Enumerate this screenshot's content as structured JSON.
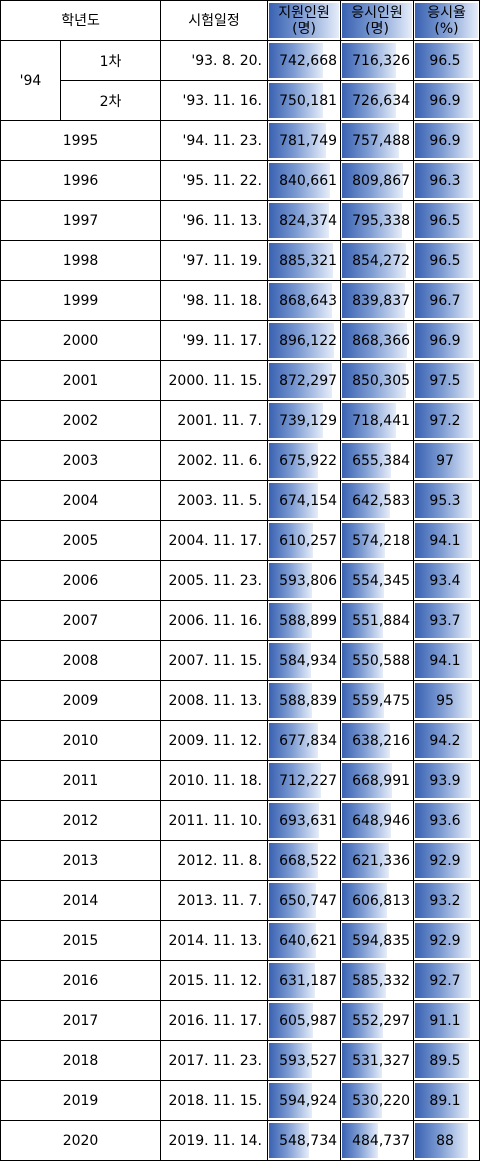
{
  "headers": {
    "year": "학년도",
    "date": "시험일정",
    "applicants": "지원인원",
    "applicants_unit": "(명)",
    "examinees": "응시인원",
    "examinees_unit": "(명)",
    "rate": "응시율",
    "rate_unit": "(%)"
  },
  "group94": {
    "label": "'94",
    "rows": [
      {
        "sub": "1차",
        "date": "'93. 8. 20.",
        "applicants": "742,668",
        "examinees": "716,326",
        "rate": "96.5"
      },
      {
        "sub": "2차",
        "date": "'93. 11. 16.",
        "applicants": "750,181",
        "examinees": "726,634",
        "rate": "96.9"
      }
    ]
  },
  "rows": [
    {
      "year": "1995",
      "date": "'94. 11. 23.",
      "applicants": "781,749",
      "examinees": "757,488",
      "rate": "96.9"
    },
    {
      "year": "1996",
      "date": "'95. 11. 22.",
      "applicants": "840,661",
      "examinees": "809,867",
      "rate": "96.3"
    },
    {
      "year": "1997",
      "date": "'96. 11. 13.",
      "applicants": "824,374",
      "examinees": "795,338",
      "rate": "96.5"
    },
    {
      "year": "1998",
      "date": "'97. 11. 19.",
      "applicants": "885,321",
      "examinees": "854,272",
      "rate": "96.5"
    },
    {
      "year": "1999",
      "date": "'98. 11. 18.",
      "applicants": "868,643",
      "examinees": "839,837",
      "rate": "96.7"
    },
    {
      "year": "2000",
      "date": "'99. 11. 17.",
      "applicants": "896,122",
      "examinees": "868,366",
      "rate": "96.9"
    },
    {
      "year": "2001",
      "date": "2000. 11. 15.",
      "applicants": "872,297",
      "examinees": "850,305",
      "rate": "97.5"
    },
    {
      "year": "2002",
      "date": "2001. 11. 7.",
      "applicants": "739,129",
      "examinees": "718,441",
      "rate": "97.2"
    },
    {
      "year": "2003",
      "date": "2002. 11. 6.",
      "applicants": "675,922",
      "examinees": "655,384",
      "rate": "97"
    },
    {
      "year": "2004",
      "date": "2003. 11. 5.",
      "applicants": "674,154",
      "examinees": "642,583",
      "rate": "95.3"
    },
    {
      "year": "2005",
      "date": "2004. 11. 17.",
      "applicants": "610,257",
      "examinees": "574,218",
      "rate": "94.1"
    },
    {
      "year": "2006",
      "date": "2005. 11. 23.",
      "applicants": "593,806",
      "examinees": "554,345",
      "rate": "93.4"
    },
    {
      "year": "2007",
      "date": "2006. 11. 16.",
      "applicants": "588,899",
      "examinees": "551,884",
      "rate": "93.7"
    },
    {
      "year": "2008",
      "date": "2007. 11. 15.",
      "applicants": "584,934",
      "examinees": "550,588",
      "rate": "94.1"
    },
    {
      "year": "2009",
      "date": "2008. 11. 13.",
      "applicants": "588,839",
      "examinees": "559,475",
      "rate": "95"
    },
    {
      "year": "2010",
      "date": "2009. 11. 12.",
      "applicants": "677,834",
      "examinees": "638,216",
      "rate": "94.2"
    },
    {
      "year": "2011",
      "date": "2010. 11. 18.",
      "applicants": "712,227",
      "examinees": "668,991",
      "rate": "93.9"
    },
    {
      "year": "2012",
      "date": "2011. 11. 10.",
      "applicants": "693,631",
      "examinees": "648,946",
      "rate": "93.6"
    },
    {
      "year": "2013",
      "date": "2012. 11. 8.",
      "applicants": "668,522",
      "examinees": "621,336",
      "rate": "92.9"
    },
    {
      "year": "2014",
      "date": "2013. 11. 7.",
      "applicants": "650,747",
      "examinees": "606,813",
      "rate": "93.2"
    },
    {
      "year": "2015",
      "date": "2014. 11. 13.",
      "applicants": "640,621",
      "examinees": "594,835",
      "rate": "92.9"
    },
    {
      "year": "2016",
      "date": "2015. 11. 12.",
      "applicants": "631,187",
      "examinees": "585,332",
      "rate": "92.7"
    },
    {
      "year": "2017",
      "date": "2016. 11. 17.",
      "applicants": "605,987",
      "examinees": "552,297",
      "rate": "91.1"
    },
    {
      "year": "2018",
      "date": "2017. 11. 23.",
      "applicants": "593,527",
      "examinees": "531,327",
      "rate": "89.5"
    },
    {
      "year": "2019",
      "date": "2018. 11. 15.",
      "applicants": "594,924",
      "examinees": "530,220",
      "rate": "89.1"
    },
    {
      "year": "2020",
      "date": "2019. 11. 14.",
      "applicants": "548,734",
      "examinees": "484,737",
      "rate": "88"
    }
  ],
  "colors": {
    "bar_dark": "#3a62b2",
    "bar_light": "#e6edf8",
    "border": "#000000"
  }
}
